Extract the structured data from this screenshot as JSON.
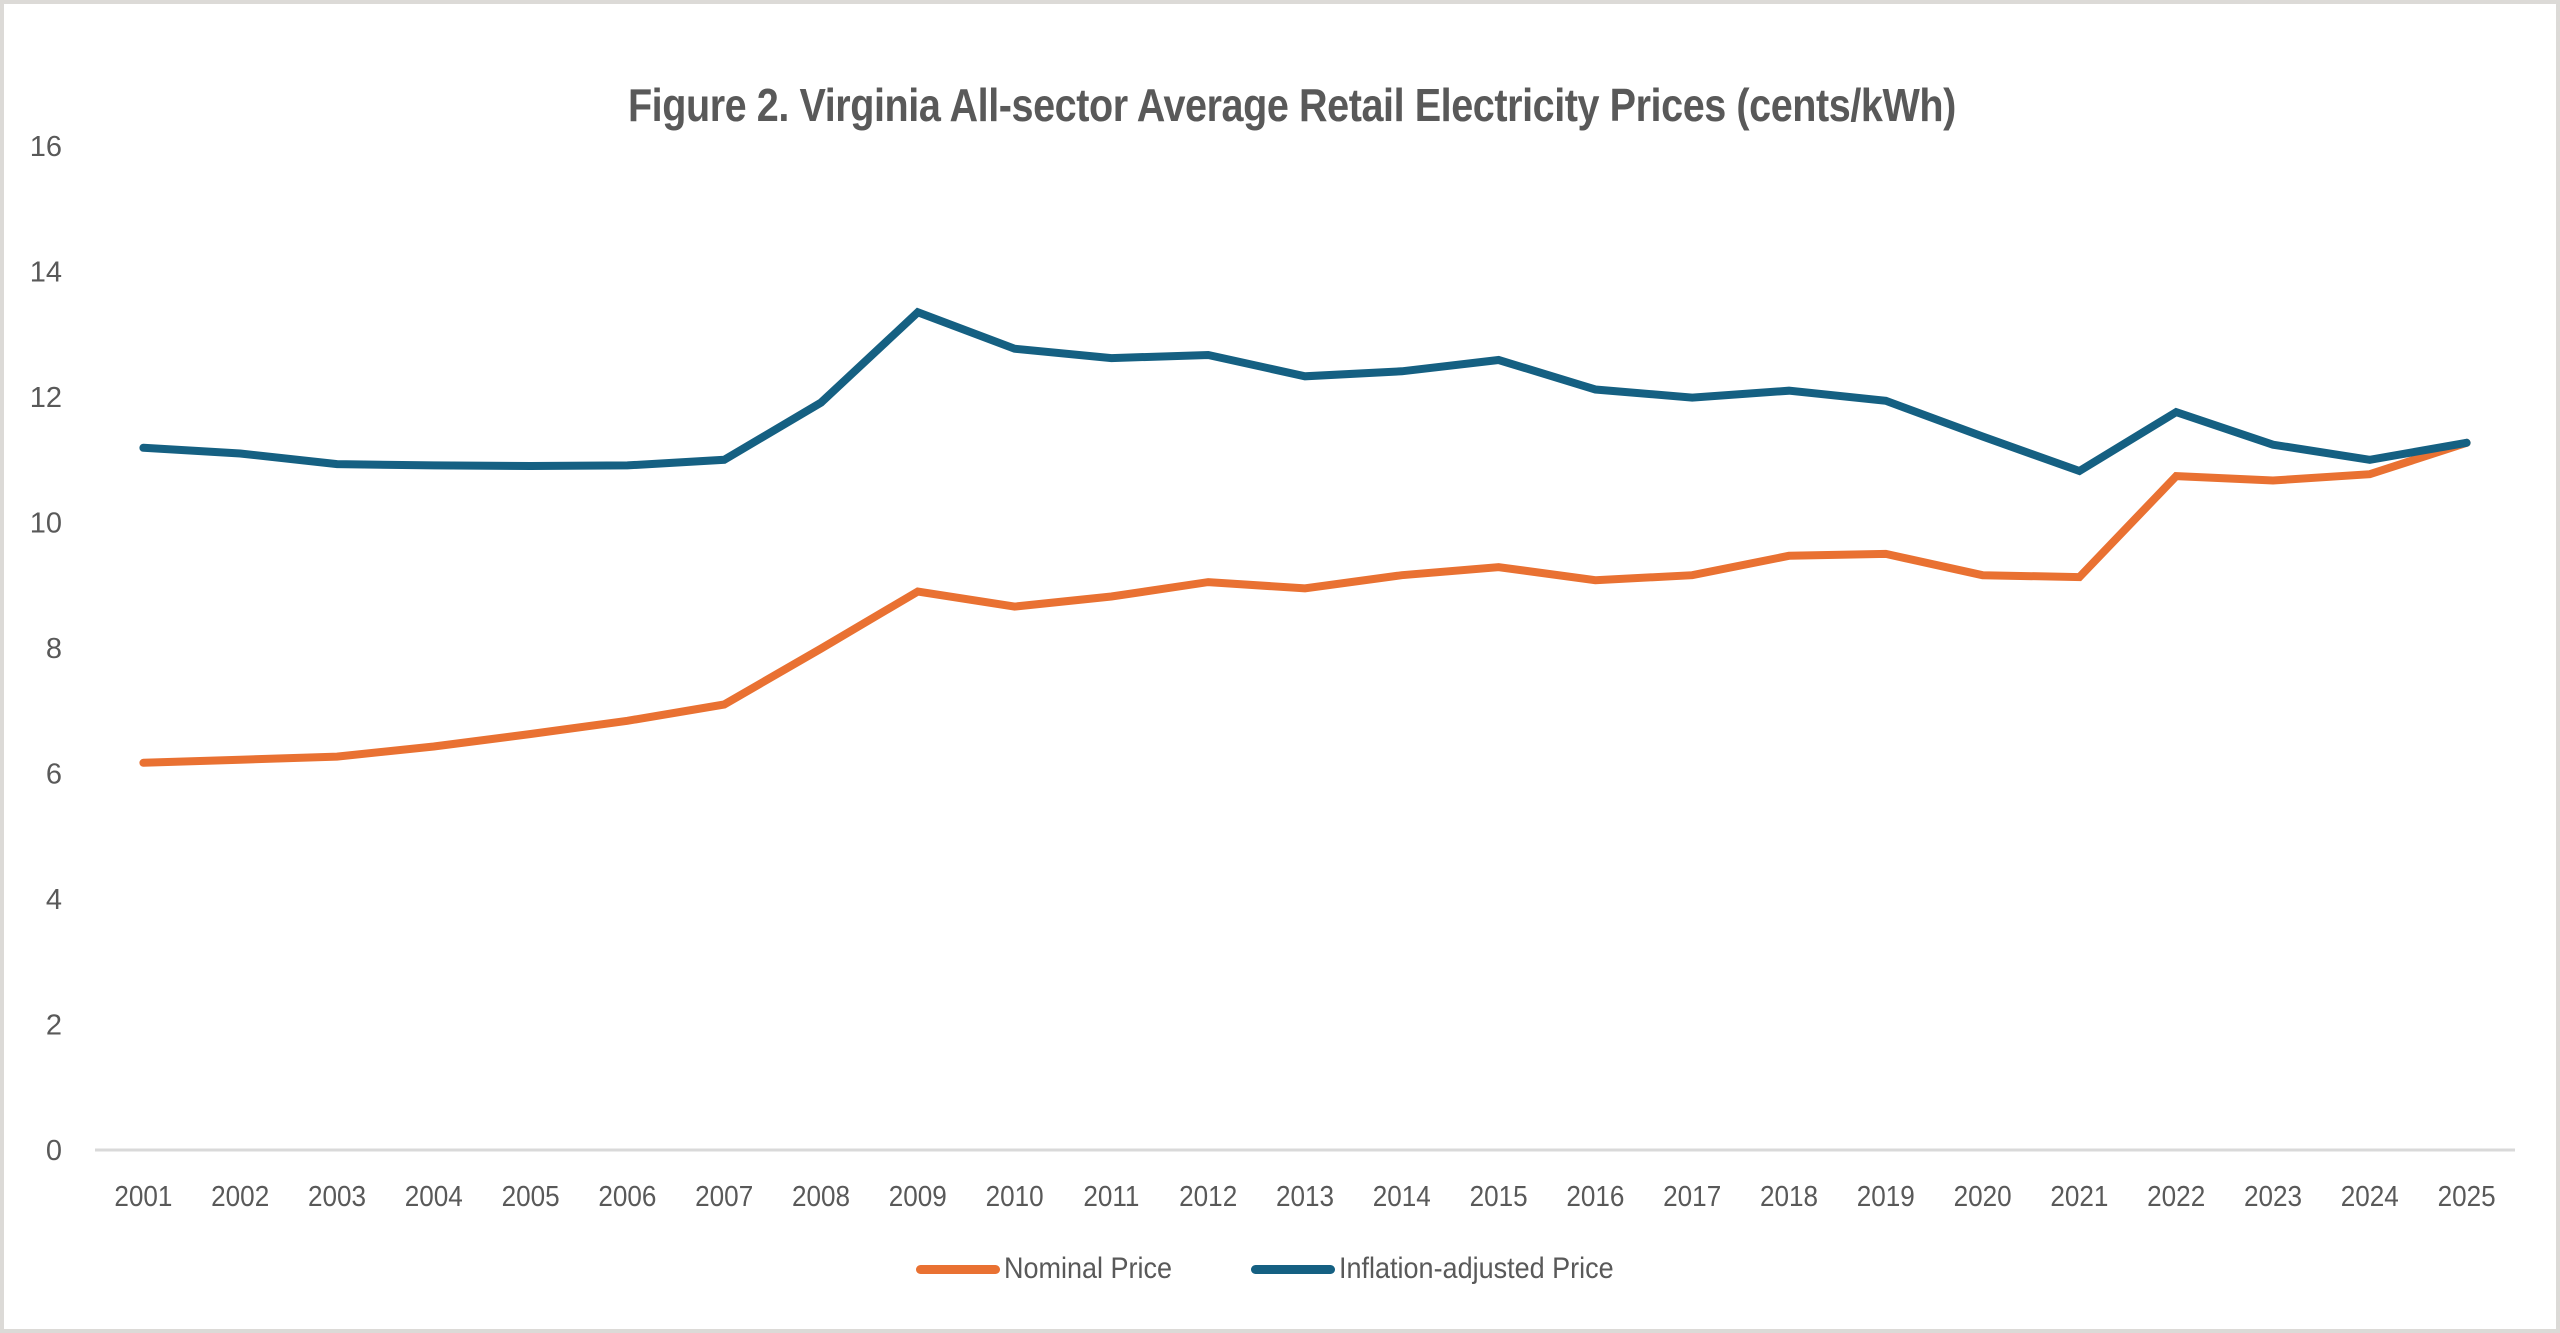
{
  "chart_data": {
    "type": "line",
    "title": "Figure 2. Virginia All-sector Average Retail Electricity Prices (cents/kWh)",
    "xlabel": "",
    "ylabel": "",
    "ylim": [
      0,
      16
    ],
    "yticks": [
      "0",
      "2",
      "4",
      "6",
      "8",
      "10",
      "12",
      "14",
      "16"
    ],
    "ytick_values": [
      0,
      2,
      4,
      6,
      8,
      10,
      12,
      14,
      16
    ],
    "grid": false,
    "legend_position": "bottom",
    "categories": [
      "2001",
      "2002",
      "2003",
      "2004",
      "2005",
      "2006",
      "2007",
      "2008",
      "2009",
      "2010",
      "2011",
      "2012",
      "2013",
      "2014",
      "2015",
      "2016",
      "2017",
      "2018",
      "2019",
      "2020",
      "2021",
      "2022",
      "2023",
      "2024",
      "2025"
    ],
    "series": [
      {
        "name": "Nominal Price",
        "color": "#e97132",
        "values": [
          6.17,
          6.22,
          6.27,
          6.43,
          6.63,
          6.84,
          7.1,
          7.99,
          8.9,
          8.66,
          8.82,
          9.05,
          8.95,
          9.16,
          9.29,
          9.08,
          9.16,
          9.47,
          9.5,
          9.16,
          9.13,
          10.74,
          10.67,
          10.77,
          11.27
        ]
      },
      {
        "name": "Inflation-adjusted Price",
        "color": "#156082",
        "values": [
          11.19,
          11.1,
          10.93,
          10.91,
          10.9,
          10.91,
          11.0,
          11.91,
          13.35,
          12.77,
          12.62,
          12.67,
          12.33,
          12.41,
          12.59,
          12.12,
          11.99,
          12.1,
          11.94,
          11.37,
          10.82,
          11.76,
          11.24,
          11.0,
          11.27
        ]
      }
    ]
  }
}
